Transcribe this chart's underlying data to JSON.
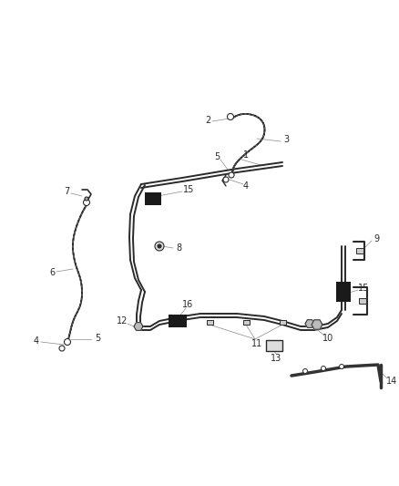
{
  "bg_color": "#ffffff",
  "line_color": "#2a2a2a",
  "label_color": "#2a2a2a",
  "fig_width": 4.38,
  "fig_height": 5.33,
  "dpi": 100,
  "label_fontsize": 7.0
}
